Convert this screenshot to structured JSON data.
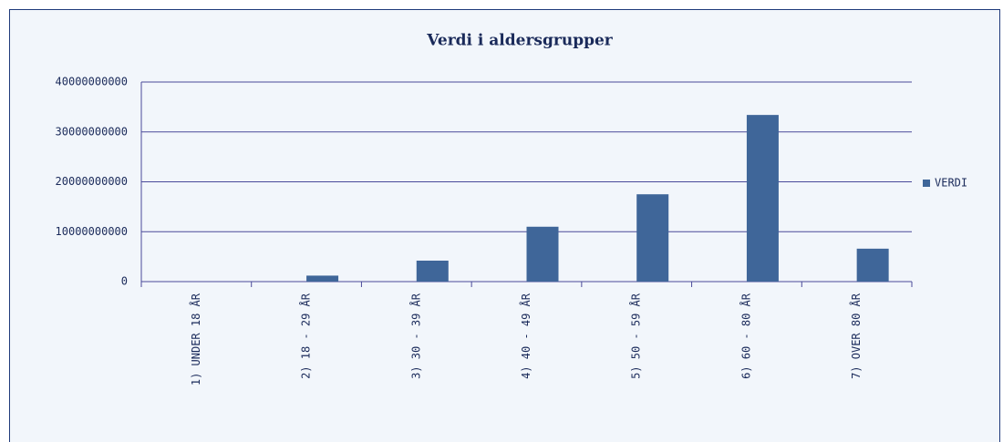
{
  "chart_data": {
    "type": "bar",
    "title": "Verdi i aldersgrupper",
    "categories": [
      "1) UNDER 18 ÅR",
      "2) 18 - 29 ÅR",
      "3) 30 - 39 ÅR",
      "4) 40 - 49 ÅR",
      "5) 50 - 59 ÅR",
      "6) 60 - 80 ÅR",
      "7) OVER 80 ÅR"
    ],
    "series": [
      {
        "name": "VERDI",
        "color": "#3f6699",
        "values": [
          0,
          1200000000,
          4200000000,
          11000000000,
          17500000000,
          33400000000,
          6600000000
        ]
      }
    ],
    "ylim": [
      0,
      40000000000
    ],
    "yticks": [
      0,
      10000000000,
      20000000000,
      30000000000,
      40000000000
    ],
    "grid": true,
    "legend": "right"
  }
}
